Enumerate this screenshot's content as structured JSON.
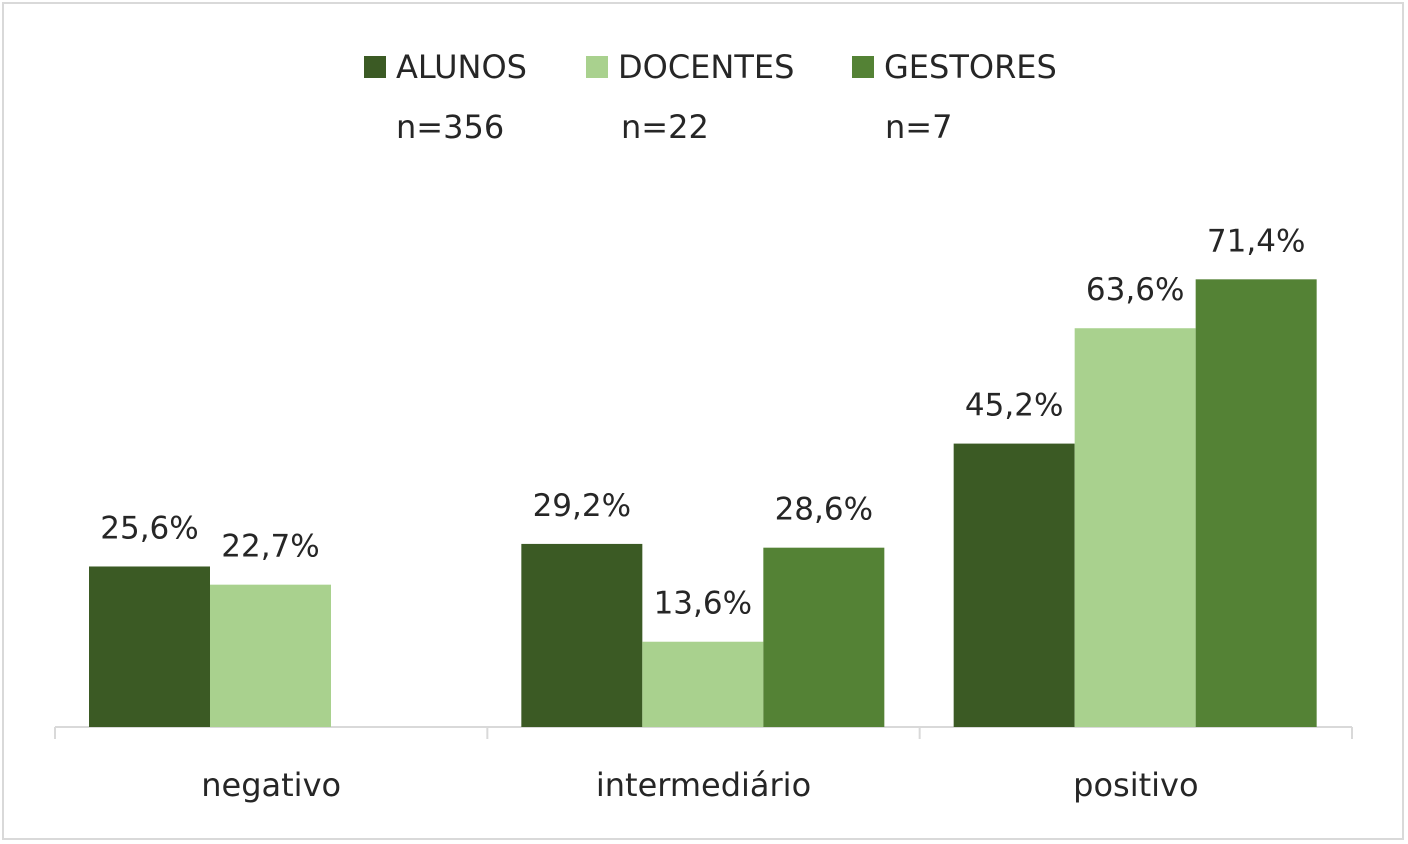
{
  "chart_data": {
    "type": "bar",
    "categories": [
      "negativo",
      "intermediário",
      "positivo"
    ],
    "series": [
      {
        "name": "ALUNOS",
        "n_label": "n=356",
        "color": "#3b5a24",
        "values": [
          25.6,
          29.2,
          45.2
        ],
        "labels": [
          "25,6%",
          "29,2%",
          "45,2%"
        ]
      },
      {
        "name": "DOCENTES",
        "n_label": "n=22",
        "color": "#a9d18e",
        "values": [
          22.7,
          13.6,
          63.6
        ],
        "labels": [
          "22,7%",
          "13,6%",
          "63,6%"
        ]
      },
      {
        "name": "GESTORES",
        "n_label": "n=7",
        "color": "#548235",
        "values": [
          null,
          28.6,
          71.4
        ],
        "labels": [
          null,
          "28,6%",
          "71,4%"
        ]
      }
    ],
    "ylim": [
      0,
      80
    ],
    "grid": false,
    "legend_position": "top"
  }
}
